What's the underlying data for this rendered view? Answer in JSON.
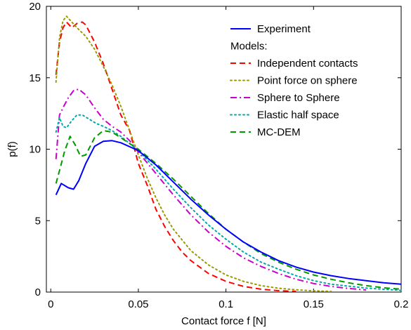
{
  "chart_data": {
    "type": "line",
    "xlabel": "Contact force f [N]",
    "ylabel": "p(f)",
    "xlim": [
      -0.0025,
      0.2
    ],
    "ylim": [
      0,
      20
    ],
    "xticks": [
      0,
      0.05,
      0.1,
      0.15,
      0.2
    ],
    "xtick_labels": [
      "0",
      "0.05",
      "0.1",
      "0.15",
      "0.2"
    ],
    "yticks": [
      0,
      5,
      10,
      15,
      20
    ],
    "ytick_labels": [
      "0",
      "5",
      "10",
      "15",
      "20"
    ],
    "grid": false,
    "legend_placement": "top-right",
    "legend_subheading": "Models:",
    "series": [
      {
        "name": "Experiment",
        "color": "#0000ff",
        "style": "solid",
        "x": [
          0.003,
          0.006,
          0.01,
          0.013,
          0.016,
          0.02,
          0.025,
          0.03,
          0.035,
          0.04,
          0.05,
          0.06,
          0.07,
          0.08,
          0.09,
          0.1,
          0.11,
          0.12,
          0.13,
          0.14,
          0.15,
          0.16,
          0.17,
          0.18,
          0.19,
          0.2
        ],
        "y": [
          6.8,
          7.6,
          7.3,
          7.2,
          7.8,
          9.0,
          10.2,
          10.55,
          10.6,
          10.45,
          9.9,
          8.9,
          7.7,
          6.5,
          5.4,
          4.4,
          3.5,
          2.8,
          2.2,
          1.75,
          1.4,
          1.15,
          0.95,
          0.8,
          0.65,
          0.55
        ]
      },
      {
        "name": "Independent contacts",
        "color": "#ff0000",
        "style": "dashed",
        "x": [
          0.003,
          0.005,
          0.007,
          0.009,
          0.012,
          0.015,
          0.018,
          0.02,
          0.025,
          0.03,
          0.035,
          0.04,
          0.045,
          0.05,
          0.055,
          0.06,
          0.065,
          0.07,
          0.075,
          0.08,
          0.09,
          0.1,
          0.11,
          0.12,
          0.13,
          0.14
        ],
        "y": [
          15.2,
          17.5,
          18.5,
          18.9,
          18.5,
          18.8,
          18.9,
          18.7,
          17.5,
          16.0,
          14.2,
          12.4,
          11.3,
          9.0,
          7.5,
          5.8,
          4.6,
          3.6,
          2.8,
          2.2,
          1.3,
          0.75,
          0.4,
          0.2,
          0.1,
          0.05
        ]
      },
      {
        "name": "Point force on sphere",
        "color": "#999900",
        "style": "dotted",
        "x": [
          0.003,
          0.005,
          0.007,
          0.009,
          0.012,
          0.015,
          0.02,
          0.025,
          0.03,
          0.035,
          0.04,
          0.045,
          0.05,
          0.055,
          0.06,
          0.065,
          0.07,
          0.08,
          0.09,
          0.1,
          0.11,
          0.12,
          0.13,
          0.14,
          0.15,
          0.16
        ],
        "y": [
          14.7,
          17.8,
          19.0,
          19.3,
          18.9,
          18.5,
          17.9,
          17.0,
          15.8,
          14.5,
          13.0,
          11.3,
          9.6,
          8.0,
          6.6,
          5.4,
          4.4,
          2.9,
          1.9,
          1.2,
          0.75,
          0.45,
          0.27,
          0.16,
          0.09,
          0.05
        ]
      },
      {
        "name": "Sphere to Sphere",
        "color": "#cc00cc",
        "style": "dashdot",
        "x": [
          0.003,
          0.005,
          0.007,
          0.01,
          0.013,
          0.016,
          0.02,
          0.025,
          0.03,
          0.035,
          0.04,
          0.045,
          0.05,
          0.06,
          0.07,
          0.08,
          0.09,
          0.1,
          0.11,
          0.12,
          0.13,
          0.14,
          0.15,
          0.16,
          0.17,
          0.18
        ],
        "y": [
          9.3,
          12.4,
          12.9,
          13.6,
          14.1,
          14.2,
          13.8,
          12.9,
          12.1,
          11.6,
          11.2,
          10.6,
          9.8,
          8.3,
          6.8,
          5.4,
          4.2,
          3.2,
          2.4,
          1.8,
          1.3,
          0.9,
          0.6,
          0.4,
          0.25,
          0.15
        ]
      },
      {
        "name": "Elastic half space",
        "color": "#00aaaa",
        "style": "dotted",
        "x": [
          0.003,
          0.005,
          0.007,
          0.009,
          0.012,
          0.015,
          0.018,
          0.022,
          0.026,
          0.03,
          0.035,
          0.04,
          0.045,
          0.05,
          0.06,
          0.07,
          0.08,
          0.09,
          0.1,
          0.11,
          0.12,
          0.13,
          0.14,
          0.15,
          0.16,
          0.18,
          0.2
        ],
        "y": [
          11.2,
          12.2,
          11.6,
          11.5,
          12.0,
          12.4,
          12.4,
          12.1,
          11.8,
          11.6,
          11.3,
          10.9,
          10.4,
          9.9,
          8.6,
          7.2,
          5.9,
          4.7,
          3.7,
          2.8,
          2.1,
          1.6,
          1.15,
          0.8,
          0.55,
          0.28,
          0.12
        ]
      },
      {
        "name": "MC-DEM",
        "color": "#009900",
        "style": "dashed",
        "x": [
          0.003,
          0.005,
          0.008,
          0.011,
          0.014,
          0.017,
          0.02,
          0.025,
          0.03,
          0.035,
          0.04,
          0.045,
          0.05,
          0.06,
          0.07,
          0.08,
          0.09,
          0.1,
          0.11,
          0.12,
          0.13,
          0.14,
          0.15,
          0.16,
          0.17,
          0.18,
          0.19,
          0.2
        ],
        "y": [
          7.6,
          8.5,
          9.9,
          10.9,
          10.3,
          9.5,
          9.6,
          10.8,
          11.3,
          11.2,
          10.8,
          10.4,
          10.0,
          9.0,
          7.9,
          6.7,
          5.5,
          4.4,
          3.5,
          2.7,
          2.1,
          1.6,
          1.2,
          0.9,
          0.65,
          0.45,
          0.3,
          0.2
        ]
      }
    ]
  }
}
